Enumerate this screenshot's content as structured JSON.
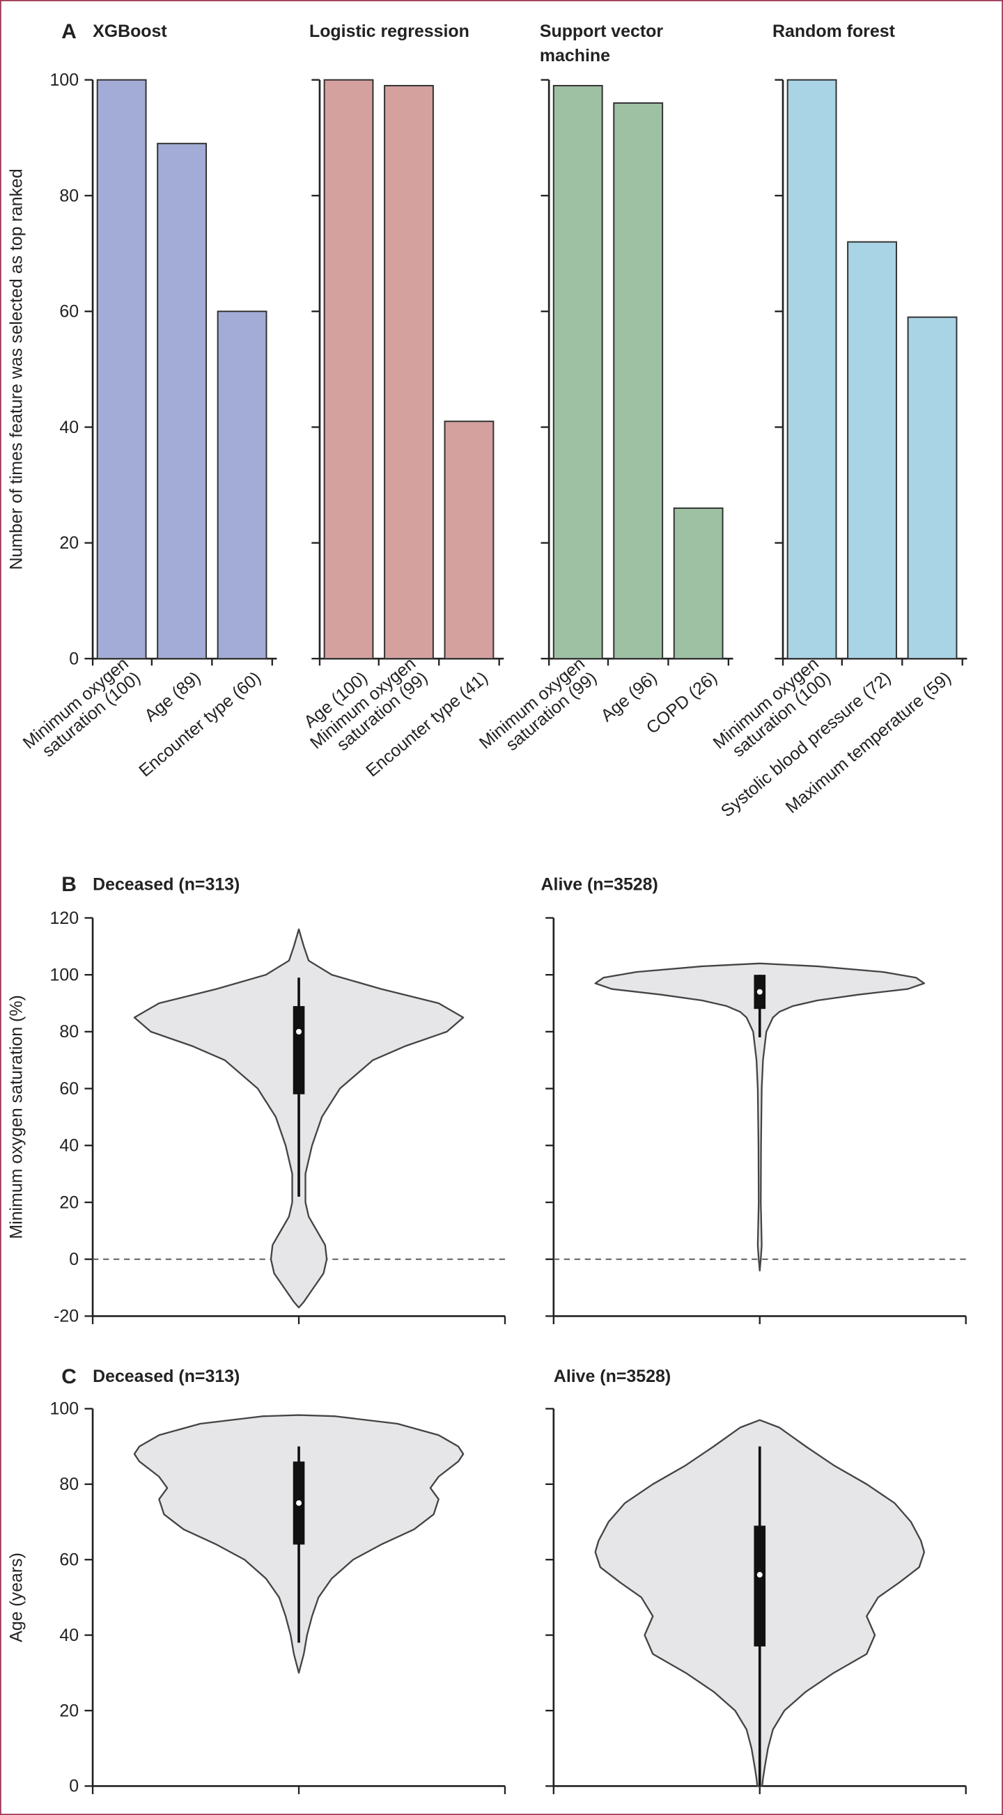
{
  "chart_data": [
    {
      "type": "bar",
      "panel": "A",
      "title": "XGBoost",
      "ylabel": "Number of times feature was selected as top ranked",
      "categories": [
        [
          "Minimum oxygen",
          "saturation (100)"
        ],
        [
          "Age (89)"
        ],
        [
          "Encounter type (60)"
        ]
      ],
      "values": [
        100,
        89,
        60
      ],
      "color": "#a3acd6",
      "ylim": [
        0,
        100
      ],
      "yticks": [
        0,
        20,
        40,
        60,
        80,
        100
      ],
      "ytick_labels": true
    },
    {
      "type": "bar",
      "title": "Logistic regression",
      "categories": [
        [
          "Age (100)"
        ],
        [
          "Minimum oxygen",
          "saturation (99)"
        ],
        [
          "Encounter type (41)"
        ]
      ],
      "values": [
        100,
        99,
        41
      ],
      "color": "#d4a19f",
      "ylim": [
        0,
        100
      ],
      "yticks": [
        0,
        20,
        40,
        60,
        80,
        100
      ],
      "ytick_labels": false
    },
    {
      "type": "bar",
      "title": [
        "Support vector",
        "machine"
      ],
      "categories": [
        [
          "Minimum oxygen",
          "saturation (99)"
        ],
        [
          "Age (96)"
        ],
        [
          "COPD (26)"
        ]
      ],
      "values": [
        99,
        96,
        26
      ],
      "color": "#9fc1a3",
      "ylim": [
        0,
        100
      ],
      "yticks": [
        0,
        20,
        40,
        60,
        80,
        100
      ],
      "ytick_labels": false
    },
    {
      "type": "bar",
      "title": "Random forest",
      "categories": [
        [
          "Minimum oxygen",
          "saturation (100)"
        ],
        [
          "Systolic blood pressure (72)"
        ],
        [
          "Maximum temperature (59)"
        ]
      ],
      "values": [
        100,
        72,
        59
      ],
      "color": "#a9d4e5",
      "ylim": [
        0,
        100
      ],
      "yticks": [
        0,
        20,
        40,
        60,
        80,
        100
      ],
      "ytick_labels": false
    },
    {
      "type": "violin",
      "panel": "B",
      "title": "Deceased (n=313)",
      "ylabel": "Minimum oxygen saturation (%)",
      "violin_y": [
        116,
        110,
        105,
        100,
        95,
        90,
        85,
        80,
        75,
        70,
        60,
        50,
        40,
        30,
        20,
        15,
        10,
        5,
        0,
        -5,
        -10,
        -15,
        -17
      ],
      "density": [
        0,
        0.03,
        0.06,
        0.2,
        0.5,
        0.85,
        1.0,
        0.9,
        0.65,
        0.45,
        0.25,
        0.14,
        0.08,
        0.04,
        0.04,
        0.06,
        0.11,
        0.16,
        0.17,
        0.15,
        0.09,
        0.03,
        0
      ],
      "box": {
        "whisker_low": 22,
        "q1": 58,
        "median": 80,
        "q3": 89,
        "whisker_high": 99
      },
      "color": "#e6e6e8",
      "ylim": [
        -20,
        120
      ],
      "yticks": [
        -20,
        0,
        20,
        40,
        60,
        80,
        100,
        120
      ],
      "reference_line": 0,
      "ytick_labels": true
    },
    {
      "type": "violin",
      "title": "Alive (n=3528)",
      "violin_y": [
        104,
        103,
        101,
        99,
        97,
        95,
        93,
        91,
        89,
        87,
        85,
        80,
        70,
        60,
        40,
        20,
        5,
        0,
        -4
      ],
      "density": [
        0,
        0.35,
        0.75,
        0.95,
        1.0,
        0.9,
        0.6,
        0.35,
        0.2,
        0.12,
        0.08,
        0.04,
        0.02,
        0.012,
        0.008,
        0.006,
        0.012,
        0.006,
        0
      ],
      "box": {
        "whisker_low": 78,
        "q1": 88,
        "median": 94,
        "q3": 100,
        "whisker_high": 100
      },
      "color": "#e6e6e8",
      "ylim": [
        -20,
        120
      ],
      "yticks": [
        -20,
        0,
        20,
        40,
        60,
        80,
        100,
        120
      ],
      "reference_line": 0,
      "ytick_labels": false
    },
    {
      "type": "violin",
      "panel": "C",
      "title": "Deceased (n=313)",
      "ylabel": "Age (years)",
      "violin_y": [
        98.3,
        98,
        96,
        93,
        90,
        88,
        86,
        82,
        79,
        76,
        72,
        68,
        64,
        60,
        55,
        50,
        45,
        40,
        35,
        30
      ],
      "density": [
        0,
        0.22,
        0.6,
        0.85,
        0.97,
        1.0,
        0.97,
        0.85,
        0.8,
        0.85,
        0.82,
        0.7,
        0.5,
        0.33,
        0.2,
        0.12,
        0.08,
        0.05,
        0.03,
        0
      ],
      "box": {
        "whisker_low": 38,
        "q1": 64,
        "median": 75,
        "q3": 86,
        "whisker_high": 90
      },
      "color": "#e6e6e8",
      "ylim": [
        0,
        100
      ],
      "yticks": [
        0,
        20,
        40,
        60,
        80,
        100
      ],
      "ytick_labels": true
    },
    {
      "type": "violin",
      "title": "Alive (n=3528)",
      "violin_y": [
        97,
        95,
        90,
        85,
        80,
        75,
        70,
        65,
        62,
        58,
        54,
        50,
        45,
        40,
        35,
        30,
        25,
        20,
        15,
        10,
        5,
        2,
        0
      ],
      "density": [
        0,
        0.12,
        0.28,
        0.45,
        0.65,
        0.82,
        0.92,
        0.98,
        1.0,
        0.97,
        0.85,
        0.72,
        0.65,
        0.7,
        0.65,
        0.45,
        0.28,
        0.15,
        0.08,
        0.05,
        0.03,
        0.02,
        0.015
      ],
      "box": {
        "whisker_low": 0,
        "q1": 37,
        "median": 56,
        "q3": 69,
        "whisker_high": 90
      },
      "color": "#e6e6e8",
      "ylim": [
        0,
        100
      ],
      "yticks": [
        0,
        20,
        40,
        60,
        80,
        100
      ],
      "ytick_labels": false
    }
  ]
}
